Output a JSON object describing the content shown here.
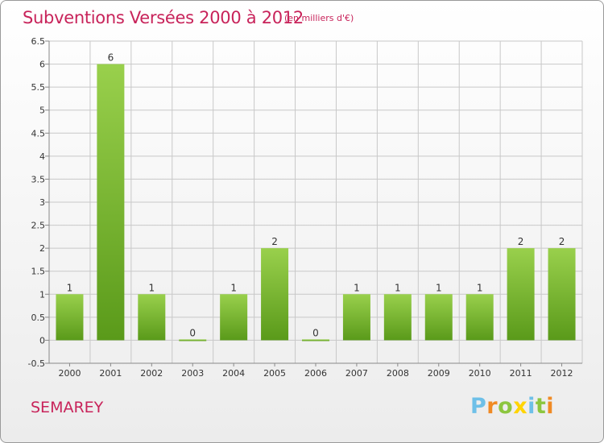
{
  "header": {
    "title": "Subventions Versées 2000 à 2012",
    "unit": "(en milliers d'€)"
  },
  "footer": {
    "commune": "SEMAREY",
    "brand": [
      "P",
      "r",
      "o",
      "x",
      "i",
      "t",
      "i"
    ],
    "brand_colors": [
      "#6ec0e8",
      "#f08a24",
      "#8cc63f",
      "#ffd400",
      "#6ec0e8",
      "#8cc63f",
      "#f08a24"
    ]
  },
  "colors": {
    "text": "#c8235a",
    "bar_top": "#99d04c",
    "bar_bottom": "#5a9a1a",
    "grid": "#c8c8c8",
    "axis": "#888888"
  },
  "chart_data": {
    "type": "bar",
    "title": "Subventions Versées 2000 à 2012",
    "subtitle": "(en milliers d'€)",
    "xlabel": "",
    "ylabel": "",
    "categories": [
      "2000",
      "2001",
      "2002",
      "2003",
      "2004",
      "2005",
      "2006",
      "2007",
      "2008",
      "2009",
      "2010",
      "2011",
      "2012"
    ],
    "values": [
      1,
      6,
      1,
      0,
      1,
      2,
      0,
      1,
      1,
      1,
      1,
      2,
      2
    ],
    "data_labels": [
      "1",
      "6",
      "1",
      "0",
      "1",
      "2",
      "0",
      "1",
      "1",
      "1",
      "1",
      "2",
      "2"
    ],
    "ylim": [
      -0.5,
      6.5
    ],
    "yticks": [
      -0.5,
      0,
      0.5,
      1,
      1.5,
      2,
      2.5,
      3,
      3.5,
      4,
      4.5,
      5,
      5.5,
      6,
      6.5
    ],
    "ytick_labels": [
      "-0.5",
      "0",
      "0.5",
      "1",
      "1.5",
      "2",
      "2.5",
      "3",
      "3.5",
      "4",
      "4.5",
      "5",
      "5.5",
      "6",
      "6.5"
    ],
    "grid": true,
    "legend": "none"
  }
}
